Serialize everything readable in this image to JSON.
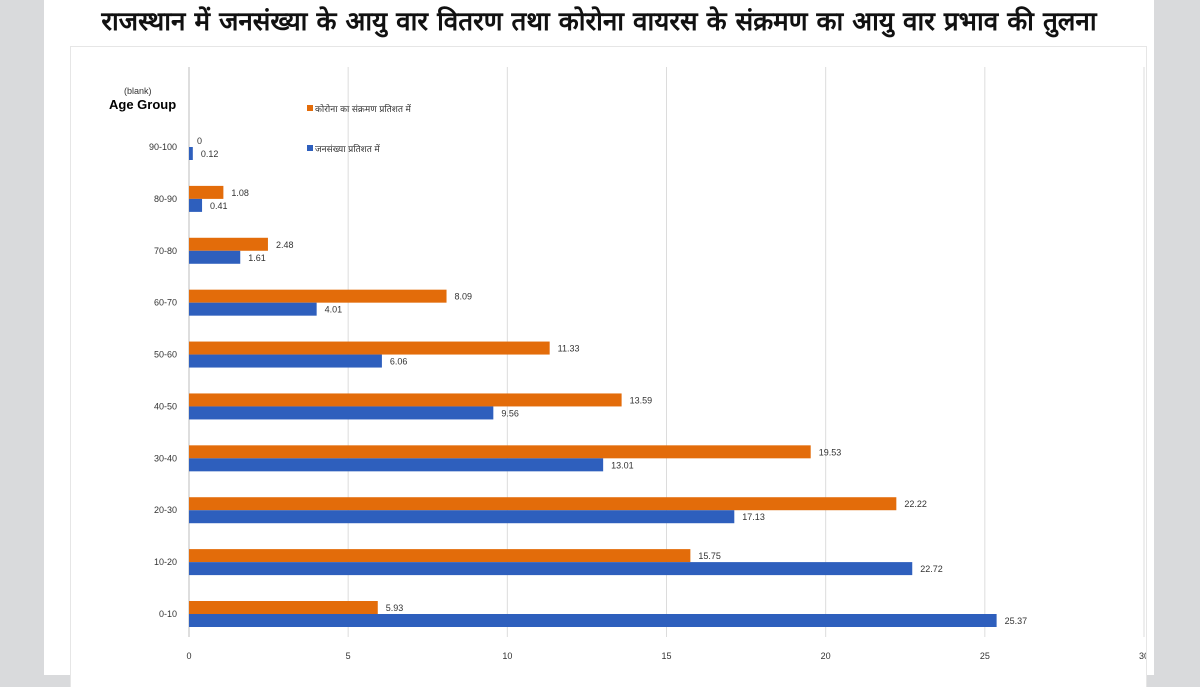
{
  "title": "राजस्थान में जनसंख्या के आयु वार वितरण तथा कोरोना वायरस के संक्रमण का आयु वार प्रभाव की तुलना",
  "chart_data": {
    "type": "bar",
    "orientation": "horizontal",
    "filter_label": "(blank)",
    "category_axis_label": "Age Group",
    "categories": [
      "0-10",
      "10-20",
      "20-30",
      "30-40",
      "40-50",
      "50-60",
      "60-70",
      "70-80",
      "80-90",
      "90-100"
    ],
    "series": [
      {
        "name": "कोरोना का संक्रमण प्रतिशत में",
        "color": "#e36c0a",
        "values": [
          5.93,
          15.75,
          22.22,
          19.53,
          13.59,
          11.33,
          8.09,
          2.48,
          1.08,
          0
        ],
        "value_labels": [
          "5.93",
          "15.75",
          "22.22",
          "19.53",
          "13.59",
          "11.33",
          "8.09",
          "2.48",
          "1.08",
          "0"
        ]
      },
      {
        "name": "जनसंख्या प्रतिशत में",
        "color": "#2e5fbd",
        "values": [
          25.37,
          22.72,
          17.13,
          13.01,
          9.56,
          6.06,
          4.01,
          1.61,
          0.41,
          0.12
        ],
        "value_labels": [
          "25.37",
          "22.72",
          "17.13",
          "13.01",
          "9.56",
          "6.06",
          "4.01",
          "1.61",
          "0.41",
          "0.12"
        ]
      }
    ],
    "xlim": [
      0,
      30
    ],
    "x_ticks": [
      "0",
      "5",
      "10",
      "15",
      "20",
      "25",
      "30"
    ],
    "grid": "vertical",
    "legend": "top-left"
  }
}
